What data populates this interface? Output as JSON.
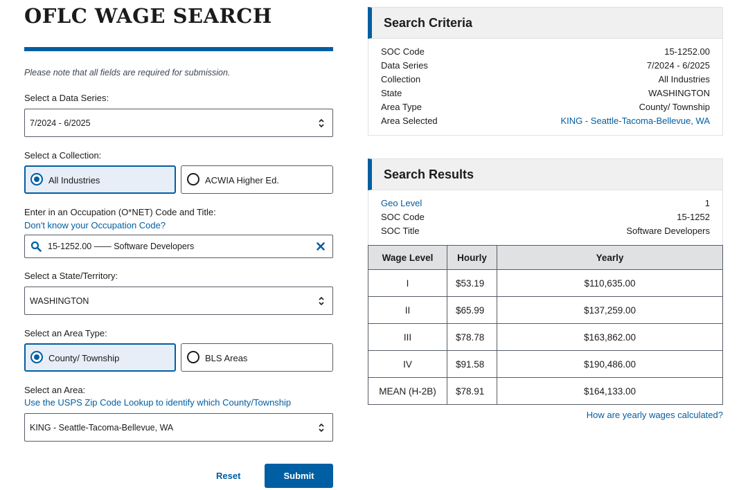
{
  "header": {
    "title": "OFLC WAGE SEARCH",
    "note": "Please note that all fields are required for submission."
  },
  "form": {
    "data_series": {
      "label": "Select a Data Series:",
      "value": "7/2024 - 6/2025"
    },
    "collection": {
      "label": "Select a Collection:",
      "options": [
        {
          "label": "All Industries",
          "checked": true
        },
        {
          "label": "ACWIA Higher Ed.",
          "checked": false
        }
      ]
    },
    "occupation": {
      "label": "Enter in an Occupation (O*NET) Code and Title:",
      "help_link": "Don't know your Occupation Code?",
      "value": "15-1252.00 —— Software Developers"
    },
    "state": {
      "label": "Select a State/Territory:",
      "value": "WASHINGTON"
    },
    "area_type": {
      "label": "Select an Area Type:",
      "options": [
        {
          "label": "County/ Township",
          "checked": true
        },
        {
          "label": "BLS Areas",
          "checked": false
        }
      ]
    },
    "area": {
      "label": "Select an Area:",
      "help_link": "Use the USPS Zip Code Lookup to identify which County/Township",
      "value": "KING - Seattle-Tacoma-Bellevue, WA"
    },
    "reset_label": "Reset",
    "submit_label": "Submit"
  },
  "criteria": {
    "heading": "Search Criteria",
    "rows": [
      {
        "key": "SOC Code",
        "value": "15-1252.00"
      },
      {
        "key": "Data Series",
        "value": "7/2024 - 6/2025"
      },
      {
        "key": "Collection",
        "value": "All Industries"
      },
      {
        "key": "State",
        "value": "WASHINGTON"
      },
      {
        "key": "Area Type",
        "value": "County/ Township"
      },
      {
        "key": "Area Selected",
        "value": "KING - Seattle-Tacoma-Bellevue, WA"
      }
    ]
  },
  "results": {
    "heading": "Search Results",
    "rows": [
      {
        "key": "Geo Level",
        "value": "1"
      },
      {
        "key": "SOC Code",
        "value": "15-1252"
      },
      {
        "key": "SOC Title",
        "value": "Software Developers"
      }
    ],
    "table": {
      "headers": [
        "Wage Level",
        "Hourly",
        "Yearly"
      ],
      "rows": [
        [
          "I",
          "$53.19",
          "$110,635.00"
        ],
        [
          "II",
          "$65.99",
          "$137,259.00"
        ],
        [
          "III",
          "$78.78",
          "$163,862.00"
        ],
        [
          "IV",
          "$91.58",
          "$190,486.00"
        ],
        [
          "MEAN (H-2B)",
          "$78.91",
          "$164,133.00"
        ]
      ]
    },
    "calc_link": "How are yearly wages calculated?"
  },
  "colors": {
    "accent": "#005ea2",
    "tile_selected_bg": "#e7eef7",
    "header_bg": "#dfe1e2"
  },
  "icons": {
    "search": "search-icon",
    "clear": "close-icon",
    "select_caret": "chevron-up-down-icon"
  }
}
